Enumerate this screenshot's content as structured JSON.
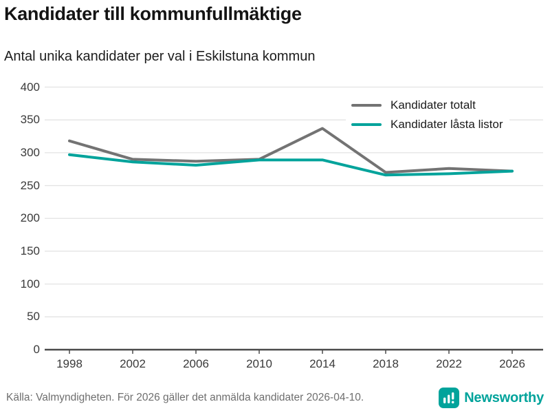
{
  "chart_data": {
    "type": "line",
    "title": "Kandidater till kommunfullmäktige",
    "subtitle": "Antal unika kandidater per val i Eskilstuna kommun",
    "x": [
      1998,
      2002,
      2006,
      2010,
      2014,
      2018,
      2022,
      2026
    ],
    "series": [
      {
        "name": "Kandidater totalt",
        "color": "#737373",
        "values": [
          318,
          290,
          287,
          290,
          337,
          270,
          276,
          272
        ]
      },
      {
        "name": "Kandidater låsta listor",
        "color": "#00a39b",
        "values": [
          297,
          286,
          281,
          289,
          289,
          266,
          268,
          272
        ]
      }
    ],
    "ylim": [
      0,
      400
    ],
    "yticks": [
      0,
      50,
      100,
      150,
      200,
      250,
      300,
      350,
      400
    ],
    "grid": true,
    "legend_position": "top-right",
    "gridline_color": "#e3e3e3",
    "axis_color": "#4a4a4a"
  },
  "footer": {
    "source_text": "Källa: Valmyndigheten. För 2026 gäller det anmälda kandidater 2026-04-10.",
    "brand": "Newsworthy",
    "brand_color": "#00a39b",
    "logo_icon": "bar-chart-icon"
  }
}
